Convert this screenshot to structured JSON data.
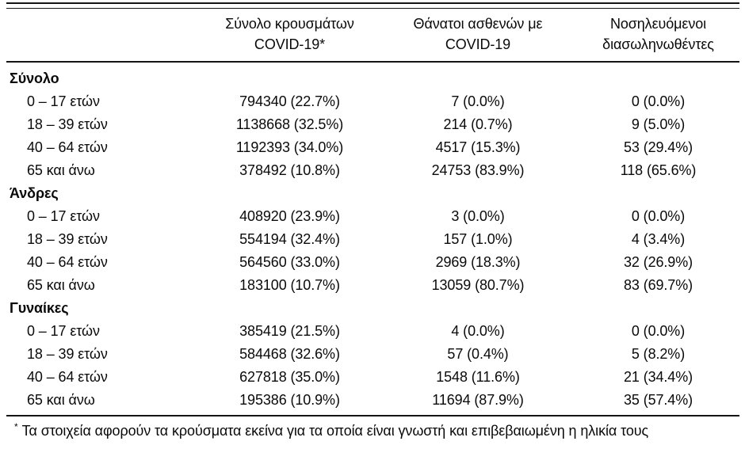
{
  "table": {
    "header": {
      "cases": {
        "line1": "Σύνολο κρουσμάτων",
        "line2": "COVID-19*"
      },
      "deaths": {
        "line1": "Θάνατοι ασθενών με",
        "line2": "COVID-19"
      },
      "intubated": {
        "line1": "Νοσηλευόμενοι",
        "line2": "διασωληνωθέντες"
      }
    },
    "sections": [
      {
        "title": "Σύνολο",
        "rows": [
          {
            "label": "0 – 17 ετών",
            "cases": "794340 (22.7%)",
            "deaths": "7 (0.0%)",
            "intubated": "0 (0.0%)"
          },
          {
            "label": "18 – 39 ετών",
            "cases": "1138668 (32.5%)",
            "deaths": "214 (0.7%)",
            "intubated": "9 (5.0%)"
          },
          {
            "label": "40 – 64 ετών",
            "cases": "1192393 (34.0%)",
            "deaths": "4517 (15.3%)",
            "intubated": "53 (29.4%)"
          },
          {
            "label": "65 και άνω",
            "cases": "378492 (10.8%)",
            "deaths": "24753 (83.9%)",
            "intubated": "118 (65.6%)"
          }
        ]
      },
      {
        "title": "Άνδρες",
        "rows": [
          {
            "label": "0 – 17 ετών",
            "cases": "408920 (23.9%)",
            "deaths": "3 (0.0%)",
            "intubated": "0 (0.0%)"
          },
          {
            "label": "18 – 39 ετών",
            "cases": "554194 (32.4%)",
            "deaths": "157 (1.0%)",
            "intubated": "4 (3.4%)"
          },
          {
            "label": "40 – 64 ετών",
            "cases": "564560 (33.0%)",
            "deaths": "2969 (18.3%)",
            "intubated": "32 (26.9%)"
          },
          {
            "label": "65 και άνω",
            "cases": "183100 (10.7%)",
            "deaths": "13059 (80.7%)",
            "intubated": "83 (69.7%)"
          }
        ]
      },
      {
        "title": "Γυναίκες",
        "rows": [
          {
            "label": "0 – 17 ετών",
            "cases": "385419 (21.5%)",
            "deaths": "4 (0.0%)",
            "intubated": "0 (0.0%)"
          },
          {
            "label": "18 – 39 ετών",
            "cases": "584468 (32.6%)",
            "deaths": "57 (0.4%)",
            "intubated": "5 (8.2%)"
          },
          {
            "label": "40 – 64 ετών",
            "cases": "627818 (35.0%)",
            "deaths": "1548 (11.6%)",
            "intubated": "21 (34.4%)"
          },
          {
            "label": "65 και άνω",
            "cases": "195386 (10.9%)",
            "deaths": "11694 (87.9%)",
            "intubated": "35 (57.4%)"
          }
        ]
      }
    ],
    "footnote": {
      "marker": "*",
      "text": "Τα στοιχεία αφορούν τα κρούσματα εκείνα για τα οποία είναι γνωστή και επιβεβαιωμένη η ηλικία τους"
    }
  }
}
